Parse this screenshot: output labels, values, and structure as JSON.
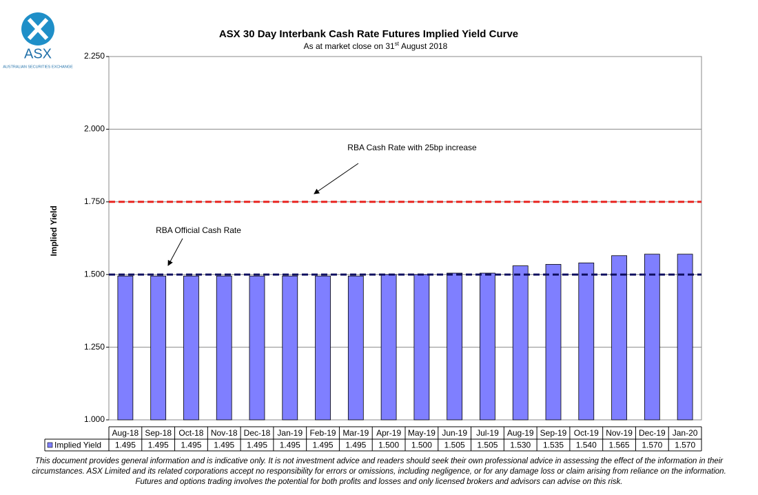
{
  "logo": {
    "mark": "ASX",
    "name": "AUSTRALIAN SECURITIES EXCHANGE"
  },
  "chart_data": {
    "type": "bar",
    "title": "ASX 30 Day Interbank Cash Rate Futures Implied Yield Curve",
    "subtitle": [
      "As at market close on 31",
      "st",
      "August 2018"
    ],
    "y_label": "Implied Yield",
    "categories": [
      "Aug-18",
      "Sep-18",
      "Oct-18",
      "Nov-18",
      "Dec-18",
      "Jan-19",
      "Feb-19",
      "Mar-19",
      "Apr-19",
      "May-19",
      "Jun-19",
      "Jul-19",
      "Aug-19",
      "Sep-19",
      "Oct-19",
      "Nov-19",
      "Dec-19",
      "Jan-20"
    ],
    "series": [
      {
        "name": "Implied Yield",
        "color": "#7f7fff",
        "values": [
          1.495,
          1.495,
          1.495,
          1.495,
          1.495,
          1.495,
          1.495,
          1.495,
          1.5,
          1.5,
          1.505,
          1.505,
          1.53,
          1.535,
          1.54,
          1.565,
          1.57,
          1.57
        ],
        "value_labels": [
          "1.495",
          "1.495",
          "1.495",
          "1.495",
          "1.495",
          "1.495",
          "1.495",
          "1.495",
          "1.500",
          "1.500",
          "1.505",
          "1.505",
          "1.530",
          "1.535",
          "1.540",
          "1.565",
          "1.570",
          "1.570"
        ]
      }
    ],
    "ylim": [
      1,
      2.25
    ],
    "yticks": [
      {
        "value": 1,
        "label": "1.000"
      },
      {
        "value": 1.25,
        "label": "1.250"
      },
      {
        "value": 1.5,
        "label": "1.500"
      },
      {
        "value": 1.75,
        "label": "1.750"
      },
      {
        "value": 2,
        "label": "2.000"
      },
      {
        "value": 2.25,
        "label": "2.250"
      }
    ],
    "grid": true,
    "reference_lines": [
      {
        "label": "RBA Cash Rate with 25bp increase",
        "value": 1.75,
        "color": "#e8231f"
      },
      {
        "label": "RBA Official Cash Rate",
        "value": 1.5,
        "color": "#101060"
      }
    ]
  },
  "disclaimer": "This document provides general information and is indicative only. It is not investment advice and readers should seek their own professional advice in assessing the effect of the information in their circumstances. ASX Limited and its related corporations accept no responsibility for errors or omissions, including negligence, or for any damage loss or claim arising from reliance on the information. Futures and options trading involves the potential for both profits and losses and only licensed brokers and advisors can advise on this risk."
}
